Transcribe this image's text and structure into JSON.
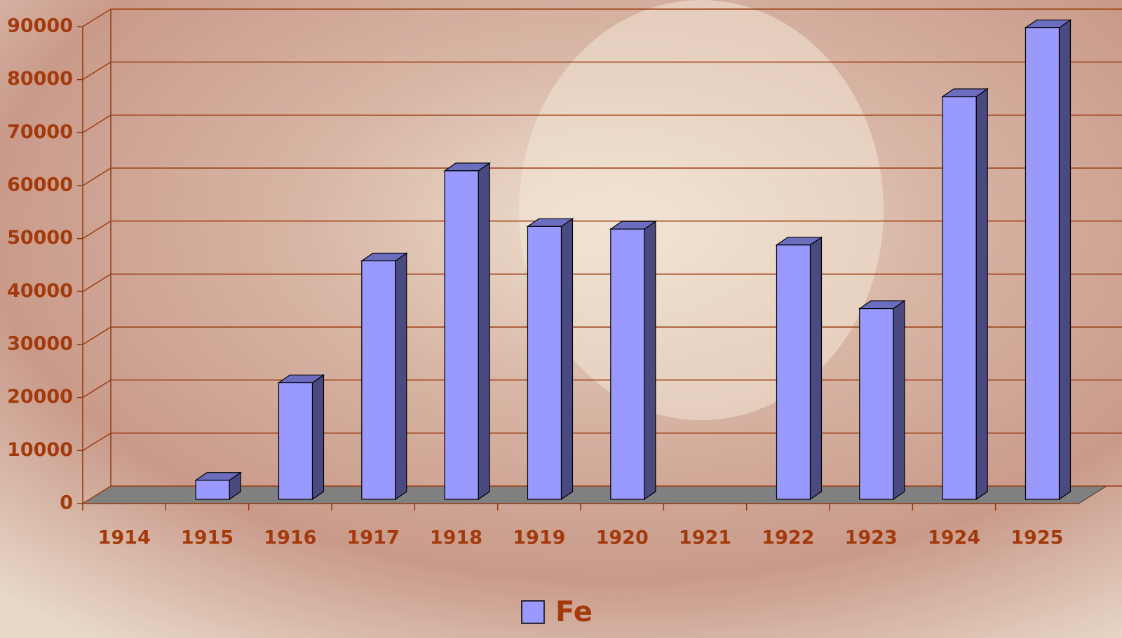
{
  "chart_data": {
    "type": "bar3d",
    "categories": [
      "1914",
      "1915",
      "1916",
      "1917",
      "1918",
      "1919",
      "1920",
      "1921",
      "1922",
      "1923",
      "1924",
      "1925"
    ],
    "series": [
      {
        "name": "Fe",
        "color": "#9999ff",
        "values": [
          null,
          3600,
          22000,
          45000,
          62000,
          51500,
          51000,
          null,
          48000,
          36000,
          76000,
          89000
        ]
      }
    ],
    "ylim": [
      0,
      90000
    ],
    "yticks": [
      0,
      10000,
      20000,
      30000,
      40000,
      50000,
      60000,
      70000,
      80000,
      90000
    ],
    "grid": true
  }
}
